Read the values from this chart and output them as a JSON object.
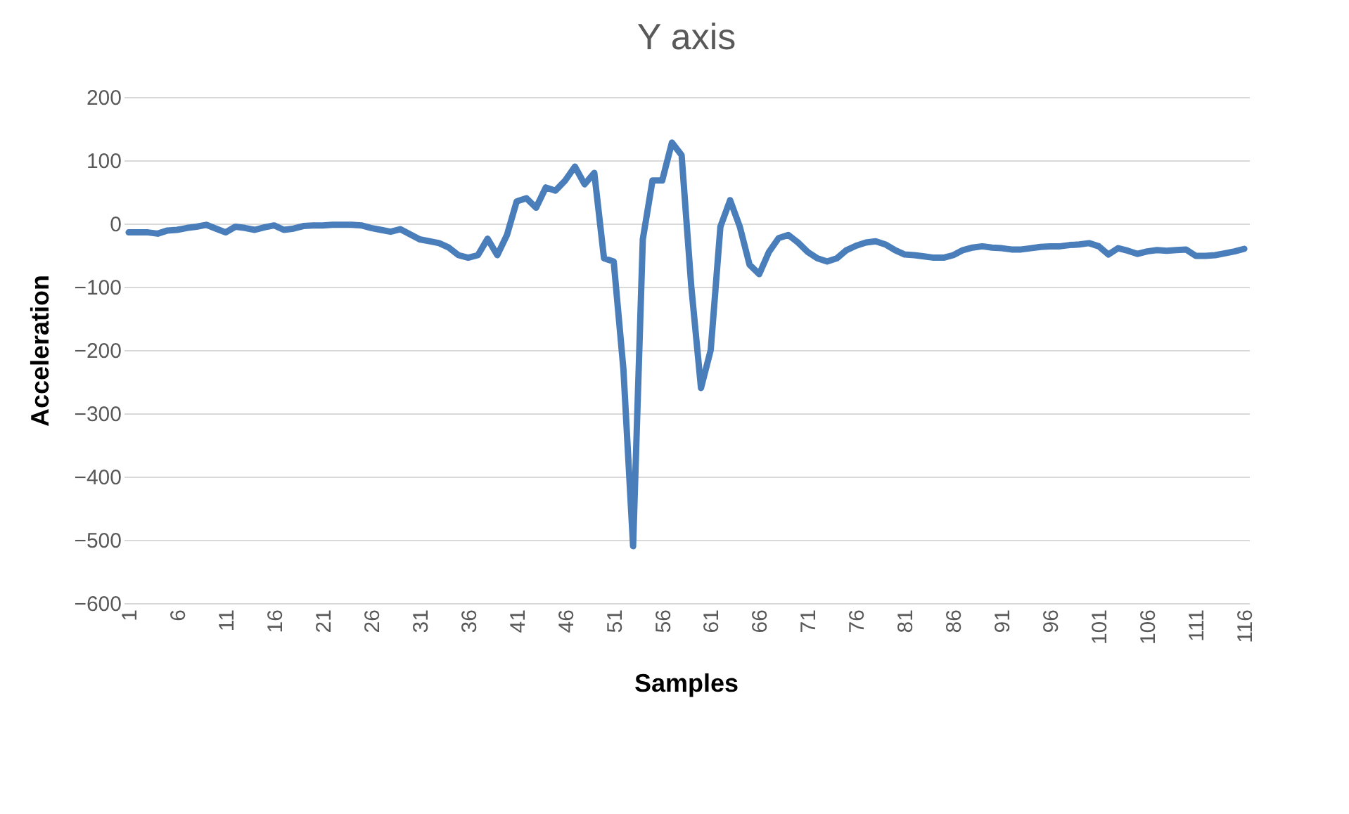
{
  "chart_data": {
    "type": "line",
    "title": "Y axis",
    "xlabel": "Samples",
    "ylabel": "Acceleration",
    "categories": [
      "1",
      null,
      null,
      null,
      null,
      "6",
      null,
      null,
      null,
      null,
      "11",
      null,
      null,
      null,
      null,
      "16",
      null,
      null,
      null,
      null,
      "21",
      null,
      null,
      null,
      null,
      "26",
      null,
      null,
      null,
      null,
      "31",
      null,
      null,
      null,
      null,
      "36",
      null,
      null,
      null,
      null,
      "41",
      null,
      null,
      null,
      null,
      "46",
      null,
      null,
      null,
      null,
      "51",
      null,
      null,
      null,
      null,
      "56",
      null,
      null,
      null,
      null,
      "61",
      null,
      null,
      null,
      null,
      "66",
      null,
      null,
      null,
      null,
      "71",
      null,
      null,
      null,
      null,
      "76",
      null,
      null,
      null,
      null,
      "81",
      null,
      null,
      null,
      null,
      "86",
      null,
      null,
      null,
      null,
      "91",
      null,
      null,
      null,
      null,
      "96",
      null,
      null,
      null,
      null,
      "101",
      null,
      null,
      null,
      null,
      "106",
      null,
      null,
      null,
      null,
      "111",
      null,
      null,
      null,
      null,
      "116"
    ],
    "series": [
      {
        "color": "#4a7ebb",
        "values": [
          -14,
          -14,
          -14,
          -16,
          -11,
          -10,
          -7,
          -5,
          -2,
          -8,
          -14,
          -5,
          -7,
          -10,
          -6,
          -3,
          -10,
          -8,
          -4,
          -3,
          -3,
          -2,
          -2,
          -2,
          -3,
          -7,
          -10,
          -13,
          -9,
          -17,
          -25,
          -28,
          -31,
          -38,
          -50,
          -54,
          -50,
          -24,
          -50,
          -18,
          35,
          40,
          25,
          57,
          52,
          68,
          90,
          62,
          80,
          -55,
          -60,
          -230,
          -510,
          -25,
          68,
          68,
          128,
          108,
          -100,
          -260,
          -200,
          -5,
          37,
          -5,
          -65,
          -80,
          -45,
          -23,
          -18,
          -30,
          -45,
          -55,
          -60,
          -55,
          -42,
          -35,
          -30,
          -28,
          -33,
          -42,
          -49,
          -50,
          -52,
          -54,
          -54,
          -50,
          -42,
          -38,
          -36,
          -38,
          -39,
          -41,
          -41,
          -39,
          -37,
          -36,
          -36,
          -34,
          -33,
          -31,
          -36,
          -49,
          -39,
          -43,
          -48,
          -44,
          -42,
          -43,
          -42,
          -41,
          -51,
          -51,
          -50,
          -47,
          -44,
          -40
        ]
      }
    ],
    "ylim": [
      -600,
      200
    ],
    "yticks": [
      -600,
      -500,
      -400,
      -300,
      -200,
      -100,
      0,
      100,
      200
    ],
    "grid": "y",
    "legend": false,
    "marker": "none",
    "line_style": "solid"
  }
}
